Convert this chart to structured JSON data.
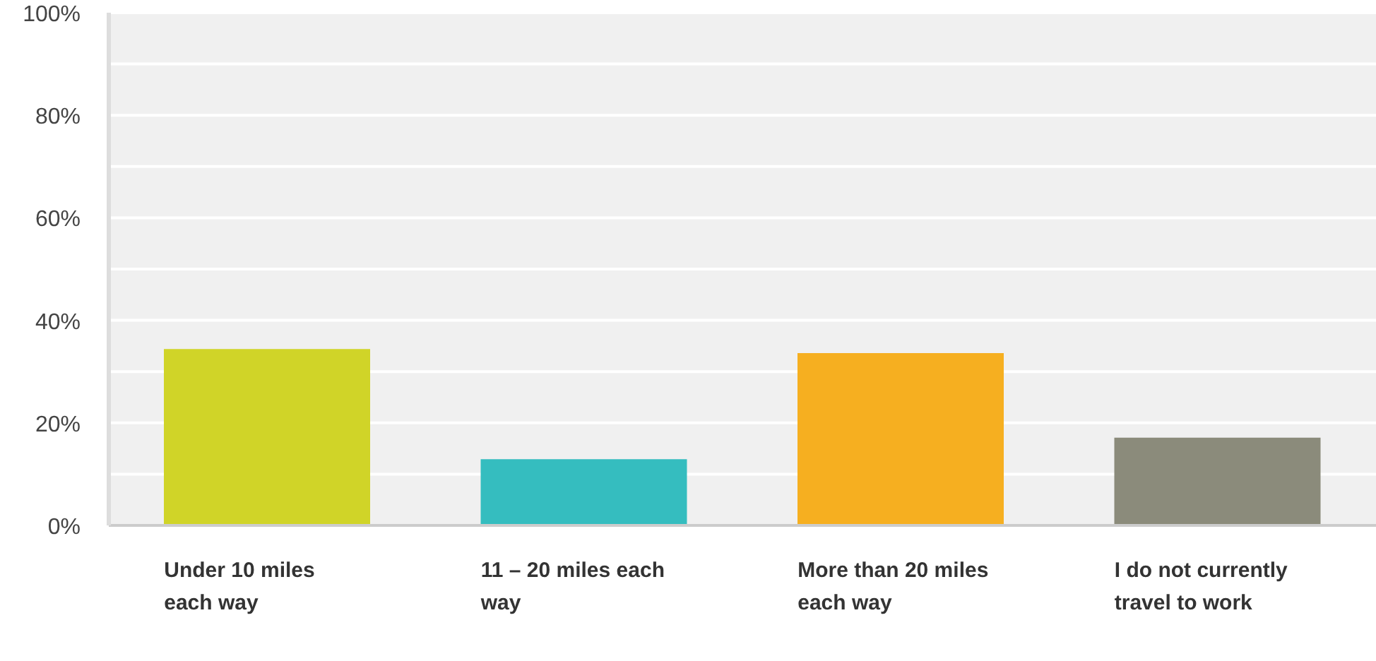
{
  "chart_data": {
    "type": "bar",
    "categories": [
      "Under 10 miles each way",
      "11 – 20 miles each way",
      "More than 20 miles each way",
      "I do not currently travel to work"
    ],
    "values": [
      34.4,
      12.9,
      33.6,
      17.1
    ],
    "colors": [
      "#d0d428",
      "#35bdbf",
      "#f6af20",
      "#8b8b7b"
    ],
    "ylim": [
      0,
      100
    ],
    "yticks": [
      {
        "value": 0,
        "label": "0%"
      },
      {
        "value": 10,
        "label": null
      },
      {
        "value": 20,
        "label": "20%"
      },
      {
        "value": 30,
        "label": null
      },
      {
        "value": 40,
        "label": "40%"
      },
      {
        "value": 50,
        "label": null
      },
      {
        "value": 60,
        "label": "60%"
      },
      {
        "value": 70,
        "label": null
      },
      {
        "value": 80,
        "label": "80%"
      },
      {
        "value": 90,
        "label": null
      },
      {
        "value": 100,
        "label": "100%"
      }
    ],
    "grid": "y",
    "legend": false
  }
}
